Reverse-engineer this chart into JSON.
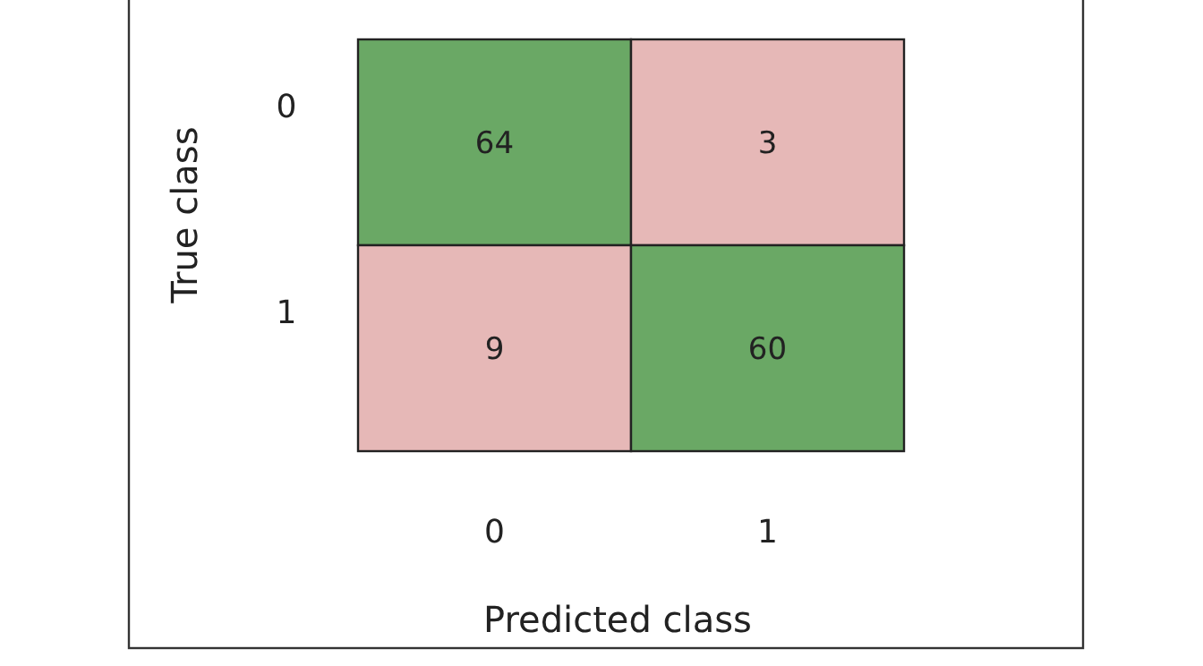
{
  "chart_data": {
    "type": "heatmap",
    "xlabel": "Predicted class",
    "ylabel": "True class",
    "categories": [
      "0",
      "1"
    ],
    "y_categories": [
      "0",
      "1"
    ],
    "cells": [
      [
        64,
        3
      ],
      [
        9,
        60
      ]
    ],
    "colors": [
      "#e6b8b7",
      "#6aa865"
    ],
    "data_labels": true
  }
}
